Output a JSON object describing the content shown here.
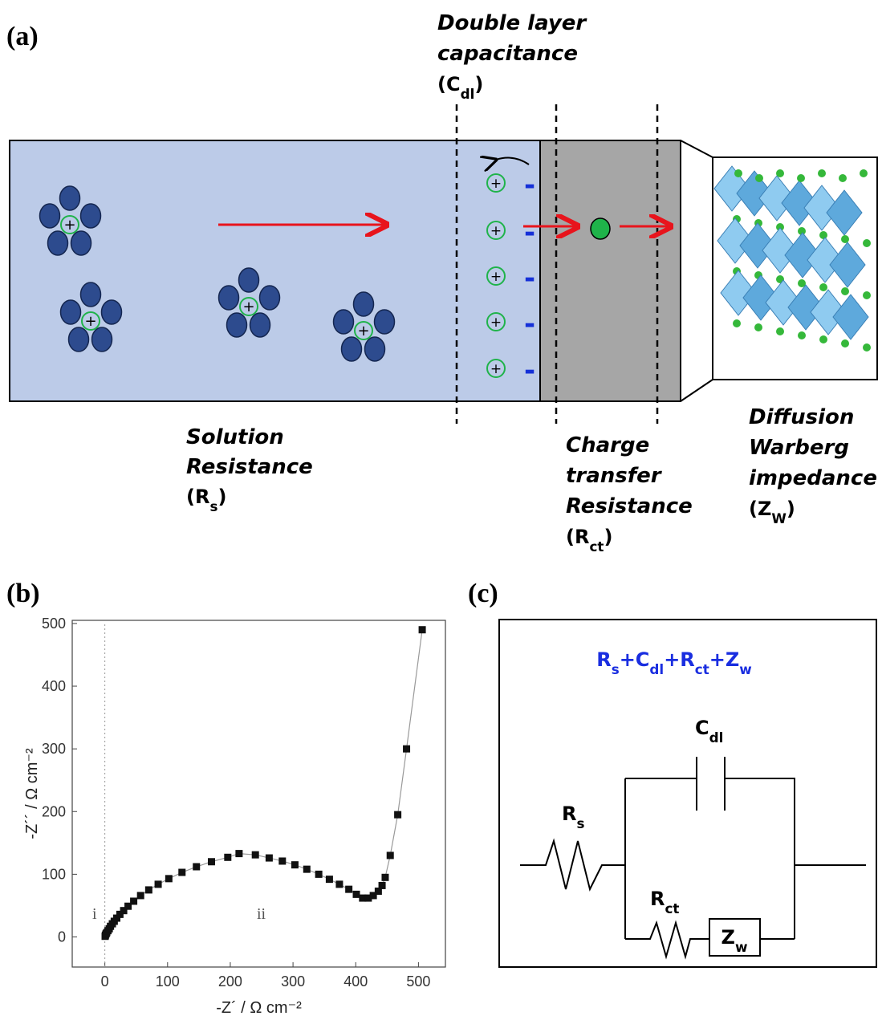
{
  "panel_a": {
    "label": "(a)",
    "cation_sign": "+",
    "anion_sign": "-",
    "double_layer": {
      "lines": [
        "Double layer",
        "capacitance"
      ],
      "symbol": {
        "main": "(C",
        "sub": "dl",
        "tail": ")"
      }
    },
    "solution": {
      "lines": [
        "Solution",
        "Resistance"
      ],
      "symbol": {
        "main": "(R",
        "sub": "s",
        "tail": ")"
      }
    },
    "charge_transfer": {
      "lines": [
        "Charge",
        "transfer",
        "Resistance"
      ],
      "symbol": {
        "main": "(R",
        "sub": "ct",
        "tail": ")"
      }
    },
    "diffusion": {
      "lines": [
        "Diffusion",
        "Warberg",
        "impedance"
      ],
      "symbol": {
        "main": "(Z",
        "sub": "W",
        "tail": ")"
      }
    }
  },
  "chart_data": {
    "type": "scatter",
    "label": "(b)",
    "x_label": "-Z´ / Ω cm⁻²",
    "y_label": "-Z´´ / Ω cm⁻²",
    "annotations": [
      "i",
      "ii"
    ],
    "color": "#111111",
    "line_color": "#999999",
    "x": [
      0.5,
      1,
      2,
      3,
      5,
      7,
      9,
      12,
      15,
      19,
      24,
      30,
      37,
      46,
      57,
      70,
      85,
      102,
      123,
      146,
      170,
      196,
      214,
      240,
      262,
      283,
      303,
      322,
      341,
      358,
      374,
      389,
      401,
      411,
      420,
      428,
      436,
      442,
      447,
      455,
      467,
      481,
      506
    ],
    "values": [
      1,
      3,
      5,
      7,
      10,
      13,
      17,
      21,
      25,
      30,
      36,
      42,
      49,
      57,
      66,
      75,
      84,
      93,
      103,
      112,
      120,
      127,
      133,
      131,
      126,
      121,
      115,
      108,
      100,
      92,
      84,
      76,
      68,
      62,
      62,
      66,
      73,
      82,
      95,
      130,
      195,
      300,
      490
    ],
    "xlim": [
      -52,
      543
    ],
    "ylim": [
      -48,
      505
    ],
    "xticks": [
      0,
      100,
      200,
      300,
      400,
      500
    ],
    "yticks": [
      0,
      100,
      200,
      300,
      400,
      500
    ]
  },
  "panel_c": {
    "label": "(c)",
    "equation": {
      "terms": [
        {
          "main": "R",
          "sub": "s"
        },
        {
          "main": "C",
          "sub": "dl"
        },
        {
          "main": "R",
          "sub": "ct"
        },
        {
          "main": "Z",
          "sub": "w"
        }
      ],
      "operator": "+"
    },
    "components": {
      "capacitor": {
        "main": "C",
        "sub": "dl"
      },
      "resistor_s": {
        "main": "R",
        "sub": "s"
      },
      "resistor_ct": {
        "main": "R",
        "sub": "ct"
      },
      "warburg": {
        "main": "Z",
        "sub": "w"
      }
    }
  }
}
